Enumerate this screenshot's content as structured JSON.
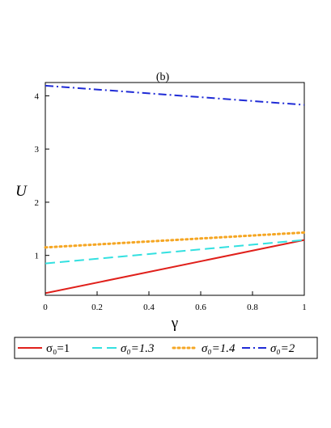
{
  "chart_data": {
    "type": "line",
    "title": "(b)",
    "xlabel": "γ",
    "ylabel": "U",
    "xlim": [
      0,
      1
    ],
    "ylim": [
      0.25,
      4.25
    ],
    "xticks": [
      0,
      0.2,
      0.4,
      0.6,
      0.8,
      1
    ],
    "xtick_labels": [
      "0",
      "0.2",
      "0.4",
      "0.6",
      "0.8",
      "1"
    ],
    "yticks": [
      1,
      2,
      3,
      4
    ],
    "ytick_labels": [
      "1",
      "2",
      "3",
      "4"
    ],
    "grid": false,
    "legend_position": "bottom",
    "series": [
      {
        "name": "σ₀=1",
        "legend_italic": false,
        "color": "#e0201b",
        "dash": "solid",
        "x": [
          0,
          1
        ],
        "y": [
          0.29,
          1.29
        ]
      },
      {
        "name": "σ₀=1.3",
        "legend_italic": true,
        "color": "#33e0e0",
        "dash": "dash",
        "x": [
          0,
          1
        ],
        "y": [
          0.85,
          1.29
        ]
      },
      {
        "name": "σ₀=1.4",
        "legend_italic": true,
        "color": "#f5a623",
        "dash": "dot",
        "x": [
          0,
          1
        ],
        "y": [
          1.15,
          1.43
        ]
      },
      {
        "name": "σ₀=2",
        "legend_italic": true,
        "color": "#1f2bd6",
        "dash": "dashdot",
        "x": [
          0,
          1
        ],
        "y": [
          4.19,
          3.83
        ]
      }
    ]
  }
}
